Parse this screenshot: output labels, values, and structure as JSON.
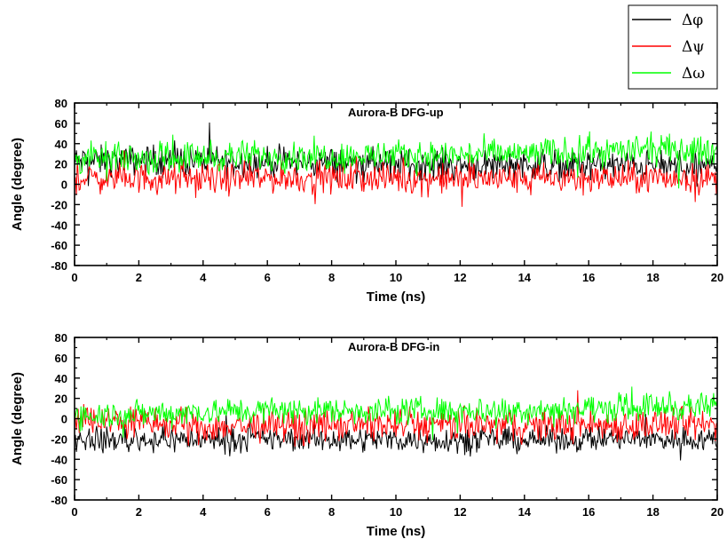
{
  "chart_data": [
    {
      "type": "line",
      "title": "Aurora-B DFG-up",
      "xlabel": "Time (ns)",
      "ylabel": "Angle (degree)",
      "xlim": [
        0,
        20
      ],
      "ylim": [
        -80,
        80
      ],
      "x_ticks": [
        0,
        2,
        4,
        6,
        8,
        10,
        12,
        14,
        16,
        18,
        20
      ],
      "y_ticks": [
        -80,
        -60,
        -40,
        -20,
        0,
        20,
        40,
        60,
        80
      ],
      "series": [
        {
          "name": "Δφ",
          "color": "#000000",
          "mean": 22,
          "spread": 22,
          "x": [
            0,
            2,
            4,
            6,
            8,
            10,
            12,
            14,
            16,
            18,
            20
          ],
          "values": [
            22,
            24,
            23,
            22,
            21,
            20,
            19,
            20,
            19,
            18,
            18
          ]
        },
        {
          "name": "Δψ",
          "color": "#ff0000",
          "mean": 6,
          "spread": 22,
          "x": [
            0,
            2,
            4,
            6,
            8,
            10,
            12,
            14,
            16,
            18,
            20
          ],
          "values": [
            6,
            6,
            5,
            6,
            6,
            6,
            5,
            6,
            6,
            6,
            6
          ]
        },
        {
          "name": "Δω",
          "color": "#00ff00",
          "mean": 28,
          "spread": 22,
          "x": [
            0,
            2,
            4,
            6,
            8,
            10,
            12,
            14,
            16,
            18,
            20
          ],
          "values": [
            25,
            26,
            27,
            28,
            28,
            28,
            29,
            30,
            32,
            34,
            32
          ]
        }
      ]
    },
    {
      "type": "line",
      "title": "Aurora-B DFG-in",
      "xlabel": "Time (ns)",
      "ylabel": "Angle (degree)",
      "xlim": [
        0,
        20
      ],
      "ylim": [
        -80,
        80
      ],
      "x_ticks": [
        0,
        2,
        4,
        6,
        8,
        10,
        12,
        14,
        16,
        18,
        20
      ],
      "y_ticks": [
        -80,
        -60,
        -40,
        -20,
        0,
        20,
        40,
        60,
        80
      ],
      "series": [
        {
          "name": "Δφ",
          "color": "#000000",
          "mean": -20,
          "spread": 18,
          "x": [
            0,
            2,
            4,
            6,
            8,
            10,
            12,
            14,
            16,
            18,
            20
          ],
          "values": [
            -20,
            -21,
            -20,
            -20,
            -20,
            -20,
            -21,
            -21,
            -20,
            -20,
            -20
          ]
        },
        {
          "name": "Δψ",
          "color": "#ff0000",
          "mean": -6,
          "spread": 24,
          "x": [
            0,
            2,
            4,
            6,
            8,
            10,
            12,
            14,
            16,
            18,
            20
          ],
          "values": [
            0,
            -4,
            -8,
            -7,
            -6,
            -6,
            -7,
            -7,
            -6,
            -6,
            -6
          ]
        },
        {
          "name": "Δω",
          "color": "#00ff00",
          "mean": 8,
          "spread": 20,
          "x": [
            0,
            2,
            4,
            6,
            8,
            10,
            12,
            14,
            16,
            18,
            20
          ],
          "values": [
            4,
            5,
            7,
            8,
            8,
            8,
            8,
            9,
            10,
            12,
            11
          ]
        }
      ]
    }
  ],
  "legend": {
    "placement": "top-right",
    "items": [
      {
        "label": "Δφ",
        "color": "#000000"
      },
      {
        "label": "Δψ",
        "color": "#ff0000"
      },
      {
        "label": "Δω",
        "color": "#00ff00"
      }
    ]
  }
}
